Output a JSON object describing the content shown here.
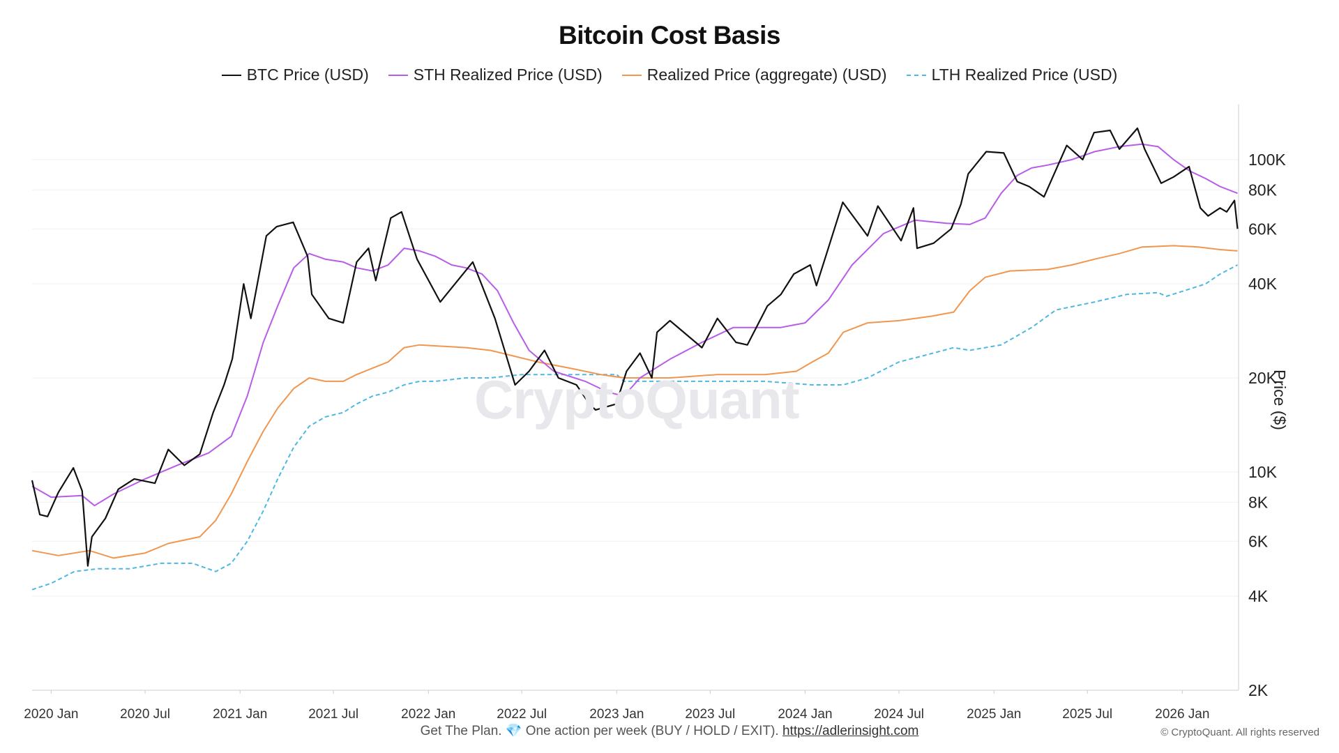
{
  "chart_data": {
    "type": "line",
    "title": "Bitcoin Cost Basis",
    "xlabel": "",
    "ylabel": "Price ($)",
    "yscale": "log",
    "ylim": [
      2000,
      150000
    ],
    "xlim": [
      "2019-11-25",
      "2026-04-20"
    ],
    "x_ticks": [
      "2020 Jan",
      "2020 Jul",
      "2021 Jan",
      "2021 Jul",
      "2022 Jan",
      "2022 Jul",
      "2023 Jan",
      "2023 Jul",
      "2024 Jan",
      "2024 Jul",
      "2025 Jan",
      "2025 Jul",
      "2026 Jan"
    ],
    "y_ticks": [
      {
        "value": 2000,
        "label": "2K"
      },
      {
        "value": 4000,
        "label": "4K"
      },
      {
        "value": 6000,
        "label": "6K"
      },
      {
        "value": 8000,
        "label": "8K"
      },
      {
        "value": 10000,
        "label": "10K"
      },
      {
        "value": 20000,
        "label": "20K"
      },
      {
        "value": 40000,
        "label": "40K"
      },
      {
        "value": 60000,
        "label": "60K"
      },
      {
        "value": 80000,
        "label": "80K"
      },
      {
        "value": 100000,
        "label": "100K"
      }
    ],
    "grid": true,
    "legend_position": "top",
    "watermark": "CryptoQuant",
    "series": [
      {
        "name": "BTC Price (USD)",
        "color": "#111111",
        "dash": "solid",
        "x": [
          "2019-11-25",
          "2019-12-10",
          "2019-12-25",
          "2020-01-15",
          "2020-02-13",
          "2020-03-01",
          "2020-03-12",
          "2020-03-20",
          "2020-04-15",
          "2020-05-10",
          "2020-06-10",
          "2020-07-20",
          "2020-08-15",
          "2020-09-15",
          "2020-10-15",
          "2020-11-10",
          "2020-12-01",
          "2020-12-17",
          "2021-01-08",
          "2021-01-22",
          "2021-02-21",
          "2021-03-13",
          "2021-04-14",
          "2021-05-12",
          "2021-05-20",
          "2021-06-22",
          "2021-07-20",
          "2021-08-15",
          "2021-09-07",
          "2021-09-21",
          "2021-10-20",
          "2021-11-10",
          "2021-12-10",
          "2022-01-24",
          "2022-03-28",
          "2022-05-10",
          "2022-06-18",
          "2022-07-15",
          "2022-08-14",
          "2022-09-10",
          "2022-10-15",
          "2022-11-09",
          "2022-11-21",
          "2022-12-31",
          "2023-01-20",
          "2023-02-15",
          "2023-03-10",
          "2023-03-20",
          "2023-04-14",
          "2023-06-15",
          "2023-07-15",
          "2023-08-20",
          "2023-09-11",
          "2023-10-20",
          "2023-11-15",
          "2023-12-10",
          "2024-01-11",
          "2024-01-23",
          "2024-02-15",
          "2024-03-14",
          "2024-05-01",
          "2024-05-21",
          "2024-07-05",
          "2024-07-29",
          "2024-08-05",
          "2024-09-06",
          "2024-10-10",
          "2024-10-29",
          "2024-11-12",
          "2024-12-17",
          "2025-01-20",
          "2025-02-15",
          "2025-03-10",
          "2025-04-08",
          "2025-05-22",
          "2025-06-22",
          "2025-07-14",
          "2025-08-14",
          "2025-09-01",
          "2025-10-06",
          "2025-10-20",
          "2025-11-21",
          "2025-12-15",
          "2026-01-14",
          "2026-02-05",
          "2026-02-20",
          "2026-03-15",
          "2026-03-28",
          "2026-04-12",
          "2026-04-18"
        ],
        "values": [
          9400,
          7300,
          7200,
          8600,
          10300,
          8700,
          5000,
          6200,
          7100,
          8800,
          9500,
          9200,
          11800,
          10500,
          11400,
          15500,
          19000,
          23000,
          40000,
          31000,
          57000,
          61000,
          63000,
          49000,
          37000,
          31000,
          30000,
          47000,
          52000,
          41000,
          65000,
          68000,
          48000,
          35000,
          47000,
          31000,
          19000,
          21000,
          24500,
          20000,
          19000,
          16500,
          15800,
          16500,
          21000,
          24000,
          20000,
          28000,
          30500,
          25000,
          31000,
          26000,
          25500,
          34000,
          37000,
          43000,
          46000,
          39500,
          52000,
          73000,
          57000,
          71000,
          55000,
          70000,
          52000,
          54000,
          60000,
          72000,
          90000,
          106000,
          105000,
          85000,
          82000,
          76000,
          111000,
          100000,
          122000,
          124000,
          108000,
          126000,
          108000,
          84000,
          88000,
          95000,
          70000,
          66000,
          70000,
          68000,
          74000,
          60000
        ]
      },
      {
        "name": "STH Realized Price (USD)",
        "color": "#b85ce8",
        "dash": "solid",
        "x": [
          "2019-11-25",
          "2020-01-01",
          "2020-03-01",
          "2020-03-25",
          "2020-05-01",
          "2020-07-01",
          "2020-09-01",
          "2020-11-01",
          "2020-12-15",
          "2021-01-15",
          "2021-02-15",
          "2021-03-15",
          "2021-04-15",
          "2021-05-15",
          "2021-06-15",
          "2021-07-20",
          "2021-08-15",
          "2021-09-15",
          "2021-10-15",
          "2021-11-15",
          "2021-12-15",
          "2022-01-15",
          "2022-02-15",
          "2022-03-15",
          "2022-04-15",
          "2022-05-15",
          "2022-06-15",
          "2022-07-15",
          "2022-09-01",
          "2022-11-01",
          "2022-12-15",
          "2023-01-15",
          "2023-02-15",
          "2023-04-15",
          "2023-06-15",
          "2023-08-15",
          "2023-10-15",
          "2023-11-15",
          "2024-01-01",
          "2024-02-15",
          "2024-04-01",
          "2024-06-01",
          "2024-08-01",
          "2024-10-01",
          "2024-11-15",
          "2024-12-15",
          "2025-01-15",
          "2025-02-15",
          "2025-03-15",
          "2025-04-15",
          "2025-06-01",
          "2025-07-15",
          "2025-09-01",
          "2025-10-15",
          "2025-11-15",
          "2025-12-15",
          "2026-01-15",
          "2026-02-15",
          "2026-03-15",
          "2026-04-18"
        ],
        "values": [
          9000,
          8300,
          8400,
          7800,
          8500,
          9500,
          10500,
          11500,
          13000,
          17500,
          26000,
          34000,
          45000,
          50000,
          48000,
          47000,
          45000,
          44000,
          46000,
          52000,
          51000,
          49000,
          46000,
          45000,
          43000,
          38000,
          30000,
          24500,
          21000,
          19500,
          18000,
          17500,
          20000,
          23000,
          26000,
          29000,
          29000,
          29000,
          30000,
          35500,
          46000,
          58000,
          64000,
          62500,
          62000,
          65000,
          78000,
          89000,
          94000,
          96000,
          100000,
          106000,
          110000,
          112000,
          110000,
          100000,
          92000,
          87000,
          82000,
          78000
        ]
      },
      {
        "name": "Realized Price (aggregate) (USD)",
        "color": "#f0964e",
        "dash": "solid",
        "x": [
          "2019-11-25",
          "2020-01-15",
          "2020-03-15",
          "2020-05-01",
          "2020-07-01",
          "2020-08-15",
          "2020-10-15",
          "2020-11-15",
          "2020-12-15",
          "2021-01-15",
          "2021-02-15",
          "2021-03-15",
          "2021-04-15",
          "2021-05-15",
          "2021-06-15",
          "2021-07-20",
          "2021-08-15",
          "2021-09-15",
          "2021-10-15",
          "2021-11-15",
          "2021-12-15",
          "2022-03-15",
          "2022-05-01",
          "2022-06-15",
          "2022-08-01",
          "2022-10-01",
          "2022-12-01",
          "2023-01-15",
          "2023-04-15",
          "2023-07-15",
          "2023-10-15",
          "2023-12-15",
          "2024-01-15",
          "2024-02-15",
          "2024-03-15",
          "2024-05-01",
          "2024-07-01",
          "2024-09-01",
          "2024-10-15",
          "2024-11-15",
          "2024-12-15",
          "2025-02-01",
          "2025-04-15",
          "2025-06-01",
          "2025-07-15",
          "2025-09-01",
          "2025-10-15",
          "2025-12-15",
          "2026-02-01",
          "2026-03-15",
          "2026-04-18"
        ],
        "values": [
          5600,
          5400,
          5600,
          5300,
          5500,
          5900,
          6200,
          7000,
          8500,
          10800,
          13500,
          16000,
          18500,
          20000,
          19500,
          19500,
          20500,
          21500,
          22500,
          25000,
          25500,
          25000,
          24500,
          23500,
          22500,
          21500,
          20500,
          20000,
          20000,
          20500,
          20500,
          21000,
          22500,
          24000,
          28000,
          30000,
          30500,
          31500,
          32500,
          38000,
          42000,
          44000,
          44500,
          46000,
          48000,
          50000,
          52500,
          53000,
          52500,
          51500,
          51000
        ]
      },
      {
        "name": "LTH Realized Price (USD)",
        "color": "#4db8e0",
        "dash": "dashed",
        "x": [
          "2019-11-25",
          "2020-01-01",
          "2020-02-15",
          "2020-04-01",
          "2020-06-01",
          "2020-08-01",
          "2020-10-01",
          "2020-11-15",
          "2020-12-15",
          "2021-01-15",
          "2021-02-15",
          "2021-03-15",
          "2021-04-15",
          "2021-05-15",
          "2021-06-15",
          "2021-07-20",
          "2021-08-15",
          "2021-09-15",
          "2021-10-15",
          "2021-11-15",
          "2021-12-15",
          "2022-01-15",
          "2022-03-15",
          "2022-05-01",
          "2022-07-01",
          "2022-09-01",
          "2022-11-15",
          "2023-01-01",
          "2023-01-15",
          "2023-04-15",
          "2023-07-15",
          "2023-10-15",
          "2024-01-15",
          "2024-03-15",
          "2024-05-01",
          "2024-07-01",
          "2024-08-15",
          "2024-10-15",
          "2024-11-15",
          "2024-12-15",
          "2025-01-15",
          "2025-03-15",
          "2025-05-01",
          "2025-07-15",
          "2025-09-15",
          "2025-11-15",
          "2025-12-01",
          "2026-01-15",
          "2026-02-15",
          "2026-03-15",
          "2026-04-18"
        ],
        "values": [
          4200,
          4400,
          4800,
          4900,
          4900,
          5100,
          5100,
          4800,
          5100,
          6000,
          7500,
          9500,
          12000,
          14000,
          15000,
          15500,
          16500,
          17500,
          18000,
          19000,
          19500,
          19500,
          20000,
          20000,
          20500,
          20500,
          20500,
          20500,
          19500,
          19500,
          19500,
          19500,
          19000,
          19000,
          20000,
          22500,
          23500,
          25000,
          24500,
          25000,
          25500,
          29000,
          33000,
          35000,
          37000,
          37500,
          36500,
          38500,
          40000,
          43000,
          46000
        ]
      }
    ]
  },
  "watermark_text": "CryptoQuant",
  "footer": {
    "text": "Get The Plan.",
    "gem": "💎",
    "text2": "One action per week (BUY / HOLD / EXIT).",
    "link": "https://adlerinsight.com"
  },
  "copyright": "© CryptoQuant. All rights reserved"
}
